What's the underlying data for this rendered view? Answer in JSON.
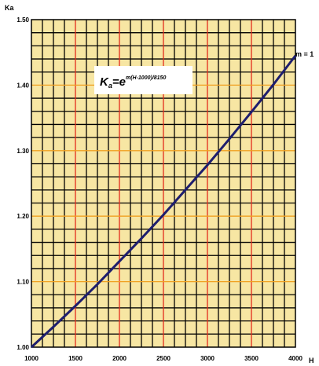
{
  "chart_data": {
    "type": "line",
    "title": "",
    "xlabel": "H",
    "ylabel": "Ka",
    "xlim": [
      1000,
      4000
    ],
    "ylim": [
      1.0,
      1.5
    ],
    "x_ticks": [
      "1000",
      "1500",
      "2000",
      "2500",
      "3000",
      "3500",
      "4000"
    ],
    "y_ticks": [
      "1.00",
      "1.10",
      "1.20",
      "1.30",
      "1.40",
      "1.50"
    ],
    "grid": true,
    "colors": {
      "background": "#f7e6a3",
      "grid_fine": "#000000",
      "grid_major_vertical": "#e32a1c",
      "grid_major_horizontal": "#f0a020",
      "line": "#1e1e6e"
    },
    "formula": {
      "base": "K",
      "subscript": "a",
      "equals_base": "=e",
      "exponent": "m(H-1000)/8150"
    },
    "series": [
      {
        "name": "m = 1",
        "x": [
          1000,
          1250,
          1500,
          1750,
          2000,
          2250,
          2500,
          2750,
          3000,
          3250,
          3500,
          3750,
          4000
        ],
        "y": [
          1.0,
          1.031,
          1.063,
          1.096,
          1.131,
          1.166,
          1.202,
          1.24,
          1.278,
          1.318,
          1.359,
          1.401,
          1.445
        ]
      }
    ]
  }
}
